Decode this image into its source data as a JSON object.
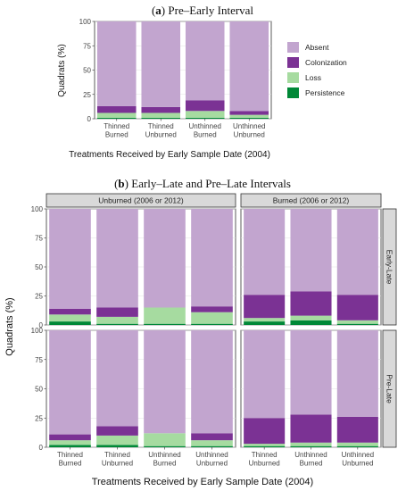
{
  "colors": {
    "Absent": "#c2a5cf",
    "Colonization": "#7b3294",
    "Loss": "#a6dba0",
    "Persistence": "#008837"
  },
  "chart_data": [
    {
      "id": "a",
      "type": "bar",
      "stacked": true,
      "title_label": "a",
      "title_text": "Pre–Early Interval",
      "xlabel": "Treatments Received by Early Sample Date (2004)",
      "ylabel": "Quadrats (%)",
      "ylim": [
        0,
        100
      ],
      "yticks": [
        0,
        25,
        50,
        75,
        100
      ],
      "grid": true,
      "legend_position": "right",
      "legend": [
        "Absent",
        "Colonization",
        "Loss",
        "Persistence"
      ],
      "categories": [
        "Thinned\nBurned",
        "Thinned\nUnburned",
        "Unthinned\nBurned",
        "Unthinned\nUnburned"
      ],
      "series": [
        {
          "name": "Persistence",
          "values": [
            1,
            1,
            1,
            1
          ]
        },
        {
          "name": "Loss",
          "values": [
            5,
            5,
            7,
            3
          ]
        },
        {
          "name": "Colonization",
          "values": [
            7,
            6,
            11,
            4
          ]
        },
        {
          "name": "Absent",
          "values": [
            87,
            88,
            81,
            92
          ]
        }
      ]
    },
    {
      "id": "b",
      "type": "bar",
      "stacked": true,
      "faceted": true,
      "title_label": "b",
      "title_text": "Early–Late and Pre–Late Intervals",
      "xlabel": "Treatments Received by Early Sample Date (2004)",
      "ylabel": "Quadrats (%)",
      "ylim": [
        0,
        100
      ],
      "yticks": [
        0,
        25,
        50,
        75,
        100
      ],
      "grid": true,
      "col_facets": [
        "Unburned (2006 or 2012)",
        "Burned (2006 or 2012)"
      ],
      "row_facets": [
        "Early-Late",
        "Pre-Late"
      ],
      "panels": [
        {
          "col": "Unburned (2006 or 2012)",
          "row": "Early-Late",
          "categories": [
            "Thinned\nBurned",
            "Thinned\nUnburned",
            "Unthinned\nBurned",
            "Unthinned\nUnburned"
          ],
          "series": [
            {
              "name": "Persistence",
              "values": [
                3,
                1,
                1,
                1
              ]
            },
            {
              "name": "Loss",
              "values": [
                6,
                6,
                14,
                10
              ]
            },
            {
              "name": "Colonization",
              "values": [
                5,
                8,
                0,
                5
              ]
            },
            {
              "name": "Absent",
              "values": [
                86,
                85,
                85,
                84
              ]
            }
          ]
        },
        {
          "col": "Burned (2006 or 2012)",
          "row": "Early-Late",
          "categories": [
            "Thinned\nUnburned",
            "Unthinned\nBurned",
            "Unthinned\nUnburned"
          ],
          "series": [
            {
              "name": "Persistence",
              "values": [
                3,
                4,
                1
              ]
            },
            {
              "name": "Loss",
              "values": [
                3,
                4,
                3
              ]
            },
            {
              "name": "Colonization",
              "values": [
                20,
                21,
                22
              ]
            },
            {
              "name": "Absent",
              "values": [
                74,
                71,
                74
              ]
            }
          ]
        },
        {
          "col": "Unburned (2006 or 2012)",
          "row": "Pre-Late",
          "categories": [
            "Thinned\nBurned",
            "Thinned\nUnburned",
            "Unthinned\nBurned",
            "Unthinned\nUnburned"
          ],
          "series": [
            {
              "name": "Persistence",
              "values": [
                2,
                2,
                1,
                1
              ]
            },
            {
              "name": "Loss",
              "values": [
                4,
                8,
                11,
                5
              ]
            },
            {
              "name": "Colonization",
              "values": [
                5,
                8,
                0,
                6
              ]
            },
            {
              "name": "Absent",
              "values": [
                89,
                82,
                88,
                88
              ]
            }
          ]
        },
        {
          "col": "Burned (2006 or 2012)",
          "row": "Pre-Late",
          "categories": [
            "Thinned\nUnburned",
            "Unthinned\nBurned",
            "Unthinned\nUnburned"
          ],
          "series": [
            {
              "name": "Persistence",
              "values": [
                1,
                1,
                1
              ]
            },
            {
              "name": "Loss",
              "values": [
                2,
                3,
                3
              ]
            },
            {
              "name": "Colonization",
              "values": [
                22,
                24,
                22
              ]
            },
            {
              "name": "Absent",
              "values": [
                75,
                72,
                74
              ]
            }
          ]
        }
      ]
    }
  ]
}
